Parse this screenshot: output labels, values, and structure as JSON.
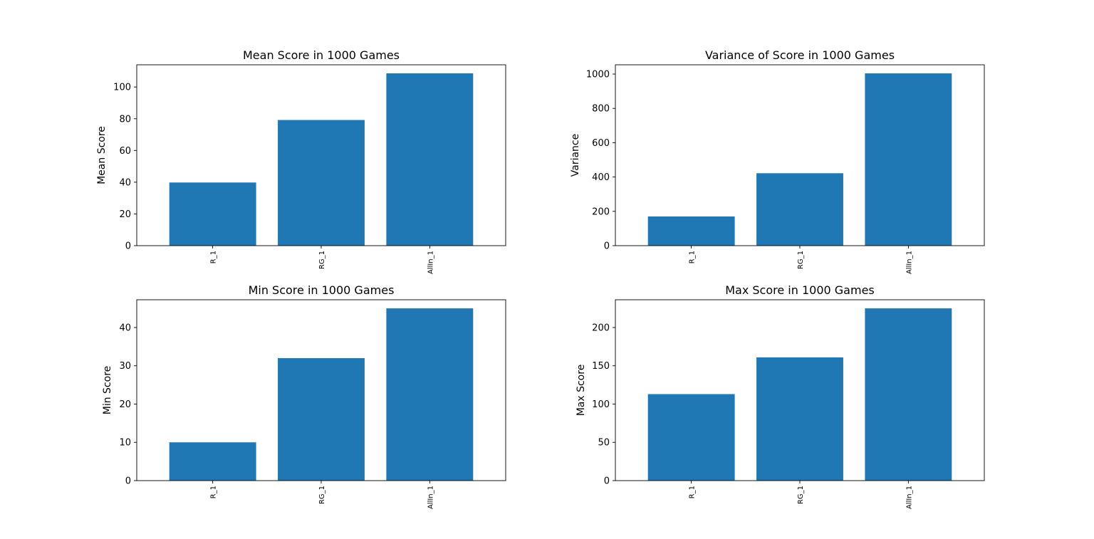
{
  "chart_data": [
    {
      "type": "bar",
      "title": "Mean Score in 1000 Games",
      "xlabel": "",
      "ylabel": "Mean Score",
      "categories": [
        "R_1",
        "RG_1",
        "AllIn_1"
      ],
      "values": [
        39.8,
        79.2,
        108.6
      ],
      "ylim": [
        0,
        114
      ],
      "yticks": [
        0,
        20,
        40,
        60,
        80,
        100
      ],
      "color": "#1f77b4",
      "grid": false
    },
    {
      "type": "bar",
      "title": "Variance of Score in 1000 Games",
      "xlabel": "",
      "ylabel": "Variance",
      "categories": [
        "R_1",
        "RG_1",
        "AllIn_1"
      ],
      "values": [
        170,
        422,
        1004
      ],
      "ylim": [
        0,
        1054
      ],
      "yticks": [
        0,
        200,
        400,
        600,
        800,
        1000
      ],
      "color": "#1f77b4",
      "grid": false
    },
    {
      "type": "bar",
      "title": "Min Score in 1000 Games",
      "xlabel": "",
      "ylabel": "Min Score",
      "categories": [
        "R_1",
        "RG_1",
        "AllIn_1"
      ],
      "values": [
        10,
        32,
        45
      ],
      "ylim": [
        0,
        47.25
      ],
      "yticks": [
        0,
        10,
        20,
        30,
        40
      ],
      "color": "#1f77b4",
      "grid": false
    },
    {
      "type": "bar",
      "title": "Max Score in 1000 Games",
      "xlabel": "",
      "ylabel": "Max Score",
      "categories": [
        "R_1",
        "RG_1",
        "AllIn_1"
      ],
      "values": [
        113,
        161,
        225
      ],
      "ylim": [
        0,
        236.25
      ],
      "yticks": [
        0,
        50,
        100,
        150,
        200
      ],
      "color": "#1f77b4",
      "grid": false
    }
  ]
}
